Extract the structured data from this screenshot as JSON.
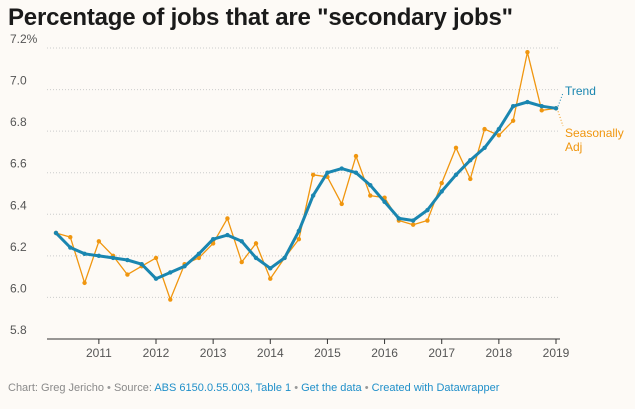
{
  "title": "Percentage of jobs that are \"secondary jobs\"",
  "footer": {
    "chart_by": "Chart: Greg Jericho",
    "source_label": "Source:",
    "source_link": "ABS 6150.0.55.003, Table 1",
    "get_data": "Get the data",
    "created_with": "Created with Datawrapper",
    "separator": "•"
  },
  "colors": {
    "trend": "#1a86b0",
    "seasonally_adj": "#f0960f",
    "grid": "#cccccc",
    "axis_text": "#555555",
    "link": "#1f8fc9"
  },
  "chart_data": {
    "type": "line",
    "title": "Percentage of jobs that are \"secondary jobs\"",
    "ylim": [
      5.8,
      7.2
    ],
    "y_ticks": [
      "5.8",
      "6.0",
      "6.2",
      "6.4",
      "6.6",
      "6.8",
      "7.0",
      "7.2%"
    ],
    "y_tick_values": [
      5.8,
      6.0,
      6.2,
      6.4,
      6.6,
      6.8,
      7.0,
      7.2
    ],
    "x_ticks": [
      "2011",
      "2012",
      "2013",
      "2014",
      "2015",
      "2016",
      "2017",
      "2018",
      "2019"
    ],
    "x_tick_values": [
      2011,
      2012,
      2013,
      2014,
      2015,
      2016,
      2017,
      2018,
      2019
    ],
    "xlim": [
      2010.5,
      2019.25
    ],
    "grid": true,
    "x": [
      2010.25,
      2010.5,
      2010.75,
      2011.0,
      2011.25,
      2011.5,
      2011.75,
      2012.0,
      2012.25,
      2012.5,
      2012.75,
      2013.0,
      2013.25,
      2013.5,
      2013.75,
      2014.0,
      2014.25,
      2014.5,
      2014.75,
      2015.0,
      2015.25,
      2015.5,
      2015.75,
      2016.0,
      2016.25,
      2016.5,
      2016.75,
      2017.0,
      2017.25,
      2017.5,
      2017.75,
      2018.0,
      2018.25,
      2018.5,
      2018.75,
      2019.0
    ],
    "series": [
      {
        "name": "Seasonally Adj",
        "values": [
          6.31,
          6.29,
          6.07,
          6.27,
          6.2,
          6.11,
          6.15,
          6.19,
          5.99,
          6.16,
          6.19,
          6.26,
          6.38,
          6.17,
          6.26,
          6.09,
          6.19,
          6.28,
          6.59,
          6.58,
          6.45,
          6.68,
          6.49,
          6.48,
          6.37,
          6.35,
          6.37,
          6.55,
          6.72,
          6.57,
          6.81,
          6.78,
          6.85,
          7.18,
          6.9,
          6.91
        ],
        "line_label": [
          "Seasonally",
          "Adj"
        ]
      },
      {
        "name": "Trend",
        "values": [
          6.31,
          6.24,
          6.21,
          6.2,
          6.19,
          6.18,
          6.16,
          6.09,
          6.12,
          6.15,
          6.21,
          6.28,
          6.3,
          6.27,
          6.19,
          6.14,
          6.19,
          6.32,
          6.49,
          6.6,
          6.62,
          6.6,
          6.54,
          6.46,
          6.38,
          6.37,
          6.42,
          6.51,
          6.59,
          6.66,
          6.72,
          6.81,
          6.92,
          6.94,
          6.92,
          6.91
        ],
        "line_label": [
          "Trend"
        ]
      }
    ]
  }
}
